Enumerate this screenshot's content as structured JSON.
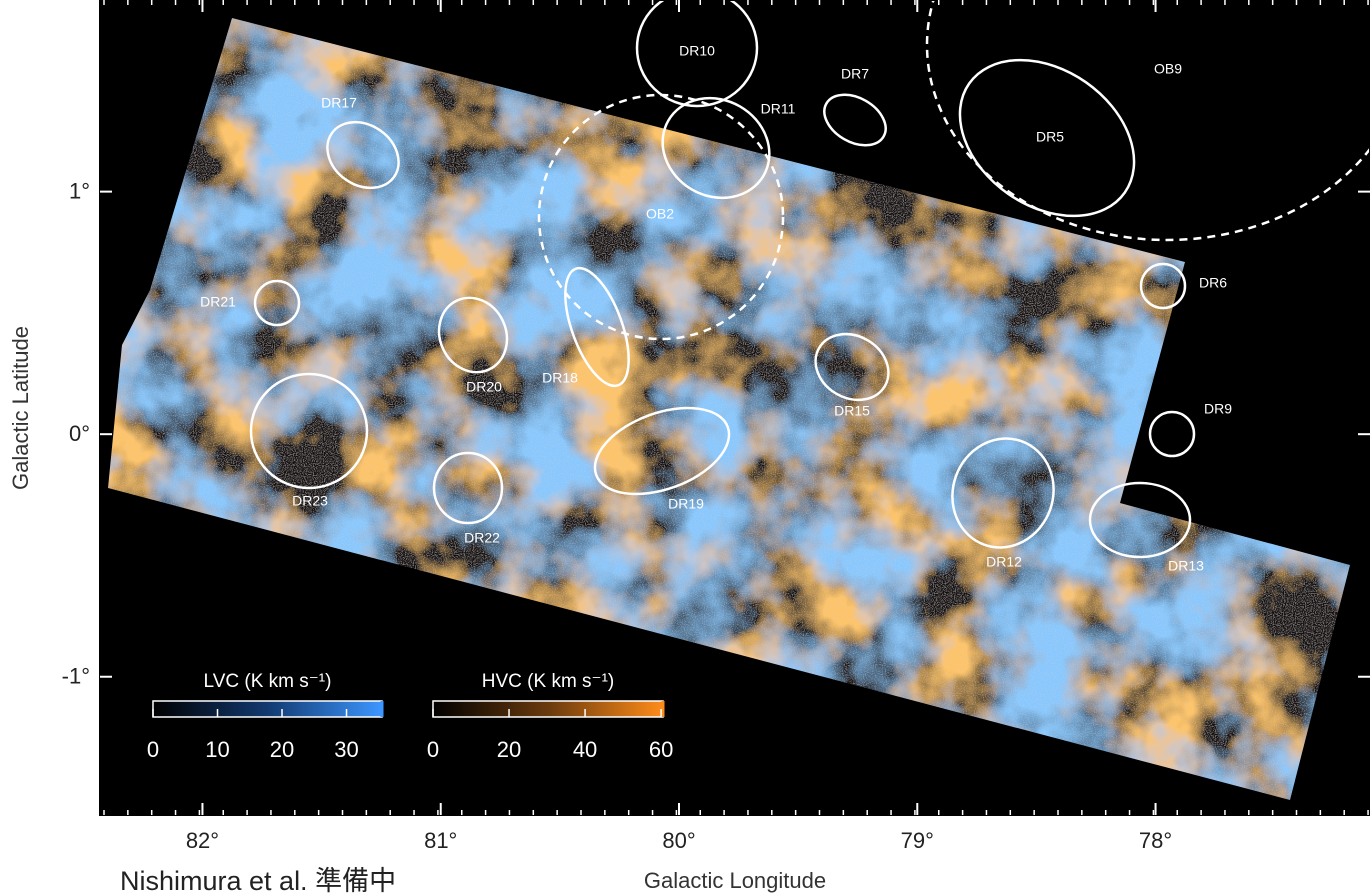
{
  "figure": {
    "x_label": "Galactic Longitude",
    "y_label": "Galactic Latitude",
    "xlim": [
      82.43,
      77.1
    ],
    "ylim": [
      -1.57,
      1.79
    ],
    "xticks": [
      {
        "value": 82,
        "label": "82°"
      },
      {
        "value": 81,
        "label": "81°"
      },
      {
        "value": 80,
        "label": "80°"
      },
      {
        "value": 79,
        "label": "79°"
      },
      {
        "value": 78,
        "label": "78°"
      }
    ],
    "yticks": [
      {
        "value": 1,
        "label": "1°"
      },
      {
        "value": 0,
        "label": "0°"
      },
      {
        "value": -1,
        "label": "-1°"
      }
    ],
    "regions": [
      "DR10",
      "DR11",
      "DR7",
      "DR5",
      "OB9",
      "OB2",
      "DR17",
      "DR21",
      "DR20",
      "DR18",
      "DR15",
      "DR6",
      "DR9",
      "DR23",
      "DR22",
      "DR19",
      "DR12",
      "DR13"
    ],
    "colorbars": [
      {
        "label": "LVC (K km s⁻¹)",
        "range": [
          0,
          35.5
        ],
        "ticks": [
          0,
          10,
          20,
          30
        ],
        "color": "#3d96ff"
      },
      {
        "label": "HVC (K km s⁻¹)",
        "range": [
          0,
          60.5
        ],
        "ticks": [
          0,
          20,
          40,
          60
        ],
        "color": "#ff8c1a"
      }
    ],
    "caption": "Nishimura et al. 準備中"
  }
}
